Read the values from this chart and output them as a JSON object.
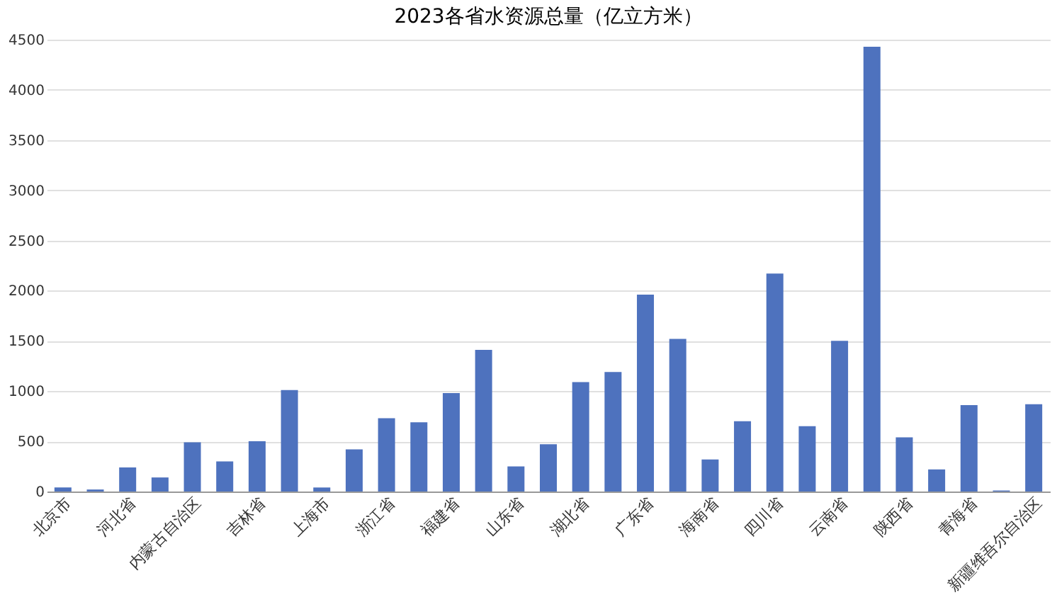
{
  "chart_data": {
    "type": "bar",
    "title": "2023各省水资源总量（亿立方米）",
    "categories": [
      "北京市",
      null,
      "河北省",
      null,
      "内蒙古自治区",
      null,
      "吉林省",
      null,
      "上海市",
      null,
      "浙江省",
      null,
      "福建省",
      null,
      "山东省",
      null,
      "湖北省",
      null,
      "广东省",
      null,
      "海南省",
      null,
      "四川省",
      null,
      "云南省",
      null,
      "陕西省",
      null,
      "青海省",
      null,
      "新疆维吾尔自治区"
    ],
    "values": [
      40,
      20,
      240,
      140,
      490,
      300,
      500,
      1010,
      40,
      420,
      730,
      690,
      980,
      1410,
      250,
      470,
      1090,
      1190,
      1960,
      1520,
      320,
      700,
      2170,
      650,
      1500,
      4430,
      540,
      220,
      860,
      10,
      870
    ],
    "color": "#4e72be",
    "ylim": [
      0,
      4500
    ],
    "yticks": [
      0,
      500,
      1000,
      1500,
      2000,
      2500,
      3000,
      3500,
      4000,
      4500
    ],
    "grid": "y"
  }
}
